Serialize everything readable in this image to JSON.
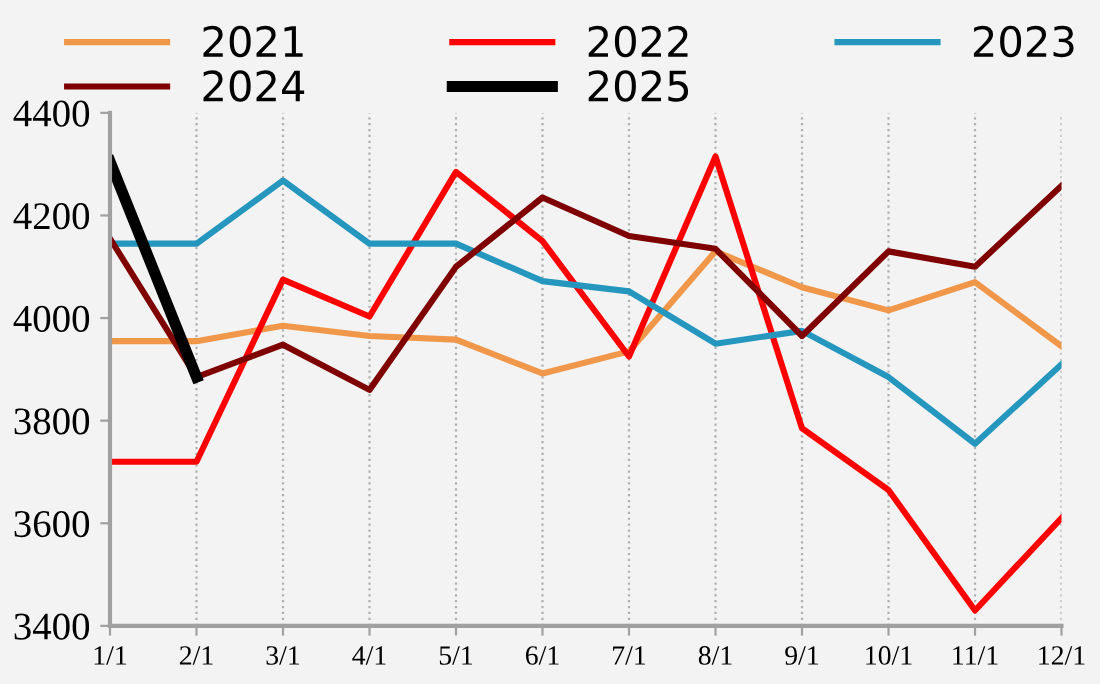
{
  "chart_data": {
    "type": "line",
    "categories": [
      "1/1",
      "2/1",
      "3/1",
      "4/1",
      "5/1",
      "6/1",
      "7/1",
      "8/1",
      "9/1",
      "10/1",
      "11/1",
      "12/1"
    ],
    "series": [
      {
        "name": "2021",
        "color": "#f0974a",
        "values": [
          3955,
          3955,
          3985,
          3965,
          3958,
          3892,
          3935,
          4130,
          4060,
          4015,
          4070,
          3945
        ]
      },
      {
        "name": "2022",
        "color": "#ff0000",
        "values": [
          3720,
          3720,
          4075,
          4003,
          4285,
          4150,
          3925,
          4315,
          3785,
          3665,
          3430,
          3610
        ]
      },
      {
        "name": "2023",
        "color": "#2596be",
        "values": [
          4145,
          4145,
          4268,
          4145,
          4145,
          4072,
          4052,
          3950,
          3975,
          3885,
          3755,
          3910
        ]
      },
      {
        "name": "2024",
        "color": "#7f0000",
        "values": [
          4155,
          3885,
          3948,
          3860,
          4100,
          4235,
          4160,
          4135,
          3965,
          4130,
          4100,
          4258
        ]
      },
      {
        "name": "2025",
        "color": "#000000",
        "values": [
          4305,
          3885,
          null,
          null,
          null,
          null,
          null,
          null,
          null,
          null,
          null,
          null
        ]
      }
    ],
    "ylim": [
      3400,
      4400
    ],
    "yticks": [
      3400,
      3600,
      3800,
      4000,
      4200,
      4400
    ],
    "grid": "x",
    "legend": "top",
    "marker": "none",
    "line_style": "solid"
  }
}
